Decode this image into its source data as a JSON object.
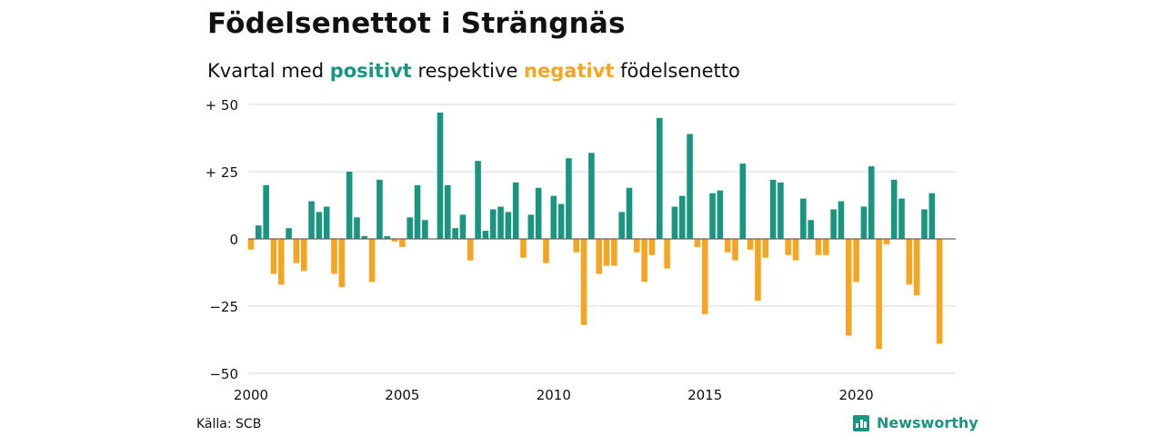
{
  "header": {
    "title": "Födelsenettot i Strängnäs",
    "subtitle_pre": "Kvartal med ",
    "subtitle_pos": "positivt",
    "subtitle_mid": " respektive ",
    "subtitle_neg": "negativt",
    "subtitle_post": " födelsenetto"
  },
  "footer": {
    "source": "Källa: SCB",
    "brand": "Newsworthy",
    "brand_icon": "bar-chart-icon"
  },
  "colors": {
    "positive": "#1a9580",
    "negative": "#f4a522",
    "grid": "#d9d9d9",
    "zero_line": "#666666"
  },
  "chart_data": {
    "type": "bar",
    "title": "Födelsenettot i Strängnäs",
    "xlabel": "",
    "ylabel": "",
    "ylim": [
      -50,
      50
    ],
    "yticks": [
      50,
      25,
      0,
      -25,
      -50
    ],
    "ytick_labels": [
      "+ 50",
      "+ 25",
      "0",
      "−25",
      "−50"
    ],
    "xticks": [
      2000,
      2005,
      2010,
      2015,
      2020
    ],
    "xticks_labels": [
      "2000",
      "2005",
      "2010",
      "2015",
      "2020"
    ],
    "grid": true,
    "x_start": 2000,
    "quarters_per_year": 4,
    "values": [
      -4,
      5,
      20,
      -13,
      -17,
      4,
      -9,
      -12,
      14,
      10,
      12,
      -13,
      -18,
      25,
      8,
      1,
      -16,
      22,
      1,
      -1,
      -3,
      8,
      20,
      7,
      0,
      47,
      20,
      4,
      9,
      -8,
      29,
      3,
      11,
      12,
      10,
      21,
      -7,
      9,
      19,
      -9,
      16,
      13,
      30,
      -5,
      -32,
      32,
      -13,
      -10,
      -10,
      10,
      19,
      -5,
      -16,
      -6,
      45,
      -11,
      12,
      16,
      39,
      -3,
      -28,
      17,
      18,
      -5,
      -8,
      28,
      -4,
      -23,
      -7,
      22,
      21,
      -6,
      -8,
      15,
      7,
      -6,
      -6,
      11,
      14,
      -36,
      -16,
      12,
      27,
      -41,
      -2,
      22,
      15,
      -17,
      -21,
      11,
      17,
      -39
    ]
  }
}
